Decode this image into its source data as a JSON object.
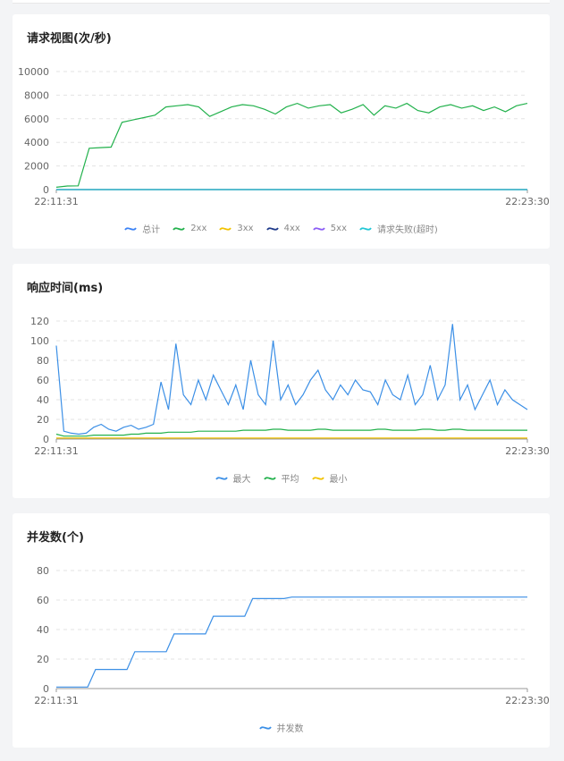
{
  "chart_data": [
    {
      "type": "line",
      "title": "请求视图(次/秒)",
      "x_start": "22:11:31",
      "x_end": "22:23:30",
      "ylim": [
        0,
        10000
      ],
      "yticks": [
        "0",
        "2000",
        "4000",
        "6000",
        "8000",
        "10000"
      ],
      "grid": true,
      "legend_position": "bottom",
      "series": [
        {
          "name": "总计",
          "color": "#3b82f6",
          "values": []
        },
        {
          "name": "2xx",
          "color": "#22b14c",
          "values": [
            200,
            300,
            320,
            3500,
            3550,
            3600,
            5700,
            5900,
            6100,
            6300,
            7000,
            7100,
            7200,
            7000,
            6200,
            6600,
            7000,
            7200,
            7100,
            6800,
            6400,
            7000,
            7300,
            6900,
            7100,
            7200,
            6500,
            6800,
            7200,
            6300,
            7100,
            6900,
            7300,
            6700,
            6500,
            7000,
            7200,
            6900,
            7100,
            6700,
            7000,
            6600,
            7100,
            7300
          ]
        },
        {
          "name": "3xx",
          "color": "#f2c200",
          "values": [
            0,
            0,
            0,
            0,
            0,
            0,
            0,
            0,
            0,
            0,
            0,
            0,
            0,
            0,
            0,
            0,
            0,
            0,
            0,
            0,
            0,
            0,
            0,
            0,
            0,
            0,
            0,
            0,
            0,
            0,
            0,
            0,
            0,
            0,
            0,
            0,
            0,
            0,
            0,
            0,
            0,
            0,
            0,
            0
          ]
        },
        {
          "name": "4xx",
          "color": "#1e3a8a",
          "values": [
            0,
            0,
            0,
            0,
            0,
            0,
            0,
            0,
            0,
            0,
            0,
            0,
            0,
            0,
            0,
            0,
            0,
            0,
            0,
            0,
            0,
            0,
            0,
            0,
            0,
            0,
            0,
            0,
            0,
            0,
            0,
            0,
            0,
            0,
            0,
            0,
            0,
            0,
            0,
            0,
            0,
            0,
            0,
            0
          ]
        },
        {
          "name": "5xx",
          "color": "#8b5cf6",
          "values": [
            0,
            0,
            0,
            0,
            0,
            0,
            0,
            0,
            0,
            0,
            0,
            0,
            0,
            0,
            0,
            0,
            0,
            0,
            0,
            0,
            0,
            0,
            0,
            0,
            0,
            0,
            0,
            0,
            0,
            0,
            0,
            0,
            0,
            0,
            0,
            0,
            0,
            0,
            0,
            0,
            0,
            0,
            0,
            0
          ]
        },
        {
          "name": "请求失败(超时)",
          "color": "#22c7d6",
          "values": [
            0,
            0,
            0,
            0,
            0,
            0,
            0,
            0,
            0,
            0,
            0,
            0,
            0,
            0,
            0,
            0,
            0,
            0,
            0,
            0,
            0,
            0,
            0,
            0,
            0,
            0,
            0,
            0,
            0,
            0,
            0,
            0,
            0,
            0,
            0,
            0,
            0,
            0,
            0,
            0,
            0,
            0,
            0,
            0
          ]
        }
      ]
    },
    {
      "type": "line",
      "title": "响应时间(ms)",
      "x_start": "22:11:31",
      "x_end": "22:23:30",
      "ylim": [
        0,
        120
      ],
      "yticks": [
        "0",
        "20",
        "40",
        "60",
        "80",
        "100",
        "120"
      ],
      "grid": true,
      "legend_position": "bottom",
      "series": [
        {
          "name": "最大",
          "color": "#3b8fe6",
          "values": [
            95,
            8,
            6,
            5,
            6,
            12,
            15,
            10,
            8,
            12,
            14,
            10,
            12,
            15,
            58,
            30,
            97,
            45,
            35,
            60,
            40,
            65,
            50,
            35,
            55,
            30,
            80,
            45,
            35,
            100,
            40,
            55,
            35,
            45,
            60,
            70,
            50,
            40,
            55,
            45,
            60,
            50,
            48,
            35,
            60,
            45,
            40,
            65,
            35,
            45,
            75,
            40,
            55,
            117,
            40,
            55,
            30,
            45,
            60,
            35,
            50,
            40,
            35,
            30
          ]
        },
        {
          "name": "平均",
          "color": "#22b14c",
          "values": [
            5,
            3,
            3,
            3,
            3,
            4,
            4,
            4,
            4,
            4,
            5,
            5,
            6,
            6,
            6,
            7,
            7,
            7,
            7,
            8,
            8,
            8,
            8,
            8,
            8,
            9,
            9,
            9,
            9,
            10,
            10,
            9,
            9,
            9,
            9,
            10,
            10,
            9,
            9,
            9,
            9,
            9,
            9,
            10,
            10,
            9,
            9,
            9,
            9,
            10,
            10,
            9,
            9,
            10,
            10,
            9,
            9,
            9,
            9,
            9,
            9,
            9,
            9,
            9
          ]
        },
        {
          "name": "最小",
          "color": "#f2c200",
          "values": [
            1,
            1,
            1,
            1,
            1,
            1,
            1,
            1,
            1,
            1,
            1,
            1,
            1,
            1,
            1,
            1,
            1,
            1,
            1,
            1,
            1,
            1,
            1,
            1,
            1,
            1,
            1,
            1,
            1,
            1,
            1,
            1,
            1,
            1,
            1,
            1,
            1,
            1,
            1,
            1,
            1,
            1,
            1,
            1,
            1,
            1,
            1,
            1,
            1,
            1,
            1,
            1,
            1,
            1,
            1,
            1,
            1,
            1,
            1,
            1,
            1,
            1,
            1,
            1
          ]
        }
      ]
    },
    {
      "type": "line",
      "title": "并发数(个)",
      "x_start": "22:11:31",
      "x_end": "22:23:30",
      "ylim": [
        0,
        80
      ],
      "yticks": [
        "0",
        "20",
        "40",
        "60",
        "80"
      ],
      "grid": true,
      "legend_position": "bottom",
      "series": [
        {
          "name": "并发数",
          "color": "#3b8fe6",
          "values": [
            1,
            1,
            1,
            1,
            1,
            13,
            13,
            13,
            13,
            13,
            25,
            25,
            25,
            25,
            25,
            37,
            37,
            37,
            37,
            37,
            49,
            49,
            49,
            49,
            49,
            61,
            61,
            61,
            61,
            61,
            62,
            62,
            62,
            62,
            62,
            62,
            62,
            62,
            62,
            62,
            62,
            62,
            62,
            62,
            62,
            62,
            62,
            62,
            62,
            62,
            62,
            62,
            62,
            62,
            62,
            62,
            62,
            62,
            62,
            62,
            62
          ]
        }
      ]
    }
  ]
}
